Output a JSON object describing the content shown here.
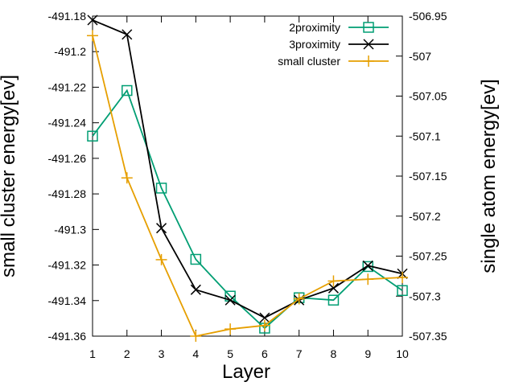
{
  "chart_data": {
    "type": "line",
    "title": "",
    "xlabel": "Layer",
    "ylabel": "small cluster energy[ev]",
    "y2label": "single atom energy[ev]",
    "xlim": [
      1,
      10
    ],
    "ylim": [
      -491.36,
      -491.18
    ],
    "y2lim": [
      -507.35,
      -506.95
    ],
    "x_ticks": [
      "1",
      "2",
      "3",
      "4",
      "5",
      "6",
      "7",
      "8",
      "9",
      "10"
    ],
    "y_ticks": [
      "-491.18",
      "-491.2",
      "-491.22",
      "-491.24",
      "-491.26",
      "-491.28",
      "-491.3",
      "-491.32",
      "-491.34",
      "-491.36"
    ],
    "y2_ticks": [
      "-506.95",
      "-507",
      "-507.05",
      "-507.1",
      "-507.15",
      "-507.2",
      "-507.25",
      "-507.3",
      "-507.35"
    ],
    "grid": false,
    "legend_position": "top-right",
    "x": [
      1,
      2,
      3,
      4,
      5,
      6,
      7,
      8,
      9,
      10
    ],
    "series": [
      {
        "name": "2proximity",
        "axis": "right",
        "marker": "square",
        "color": "#009e73",
        "values": [
          -507.1,
          -507.043,
          -507.165,
          -507.254,
          -507.3,
          -507.34,
          -507.302,
          -507.305,
          -507.263,
          -507.293
        ]
      },
      {
        "name": "3proximity",
        "axis": "right",
        "marker": "x",
        "color": "#000000",
        "values": [
          -506.955,
          -506.973,
          -507.215,
          -507.292,
          -507.305,
          -507.327,
          -507.305,
          -507.29,
          -507.262,
          -507.272
        ]
      },
      {
        "name": "small cluster",
        "axis": "left",
        "marker": "plus",
        "color": "#e69f00",
        "values": [
          -491.191,
          -491.271,
          -491.317,
          -491.36,
          -491.356,
          -491.354,
          -491.339,
          -491.329,
          -491.328,
          -491.327
        ]
      }
    ]
  }
}
